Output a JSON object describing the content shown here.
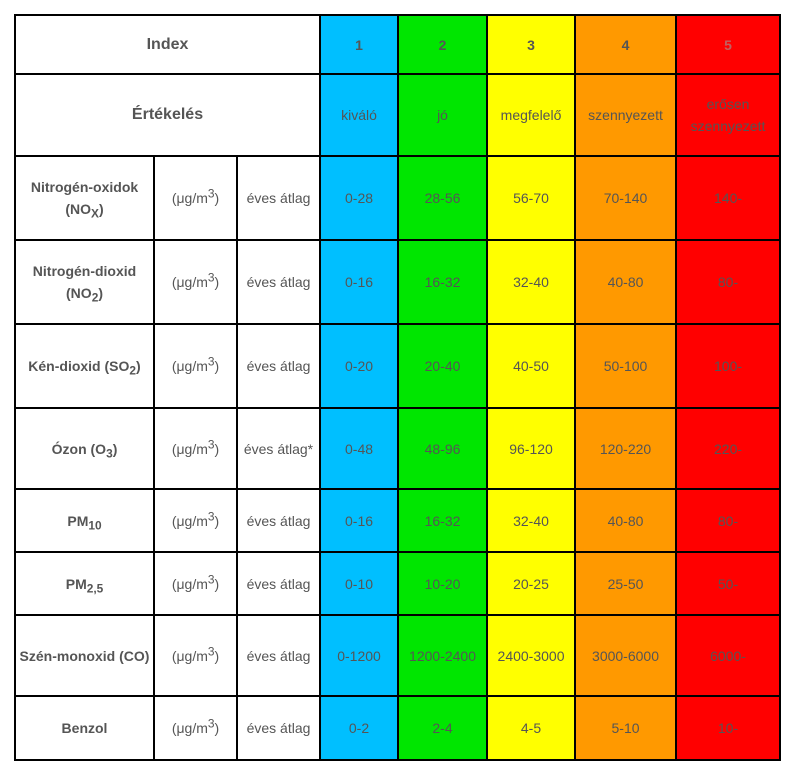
{
  "header": {
    "index_label": "Index",
    "rating_label": "Értékelés",
    "levels": [
      "1",
      "2",
      "3",
      "4",
      "5"
    ],
    "ratings": [
      "kiváló",
      "jó",
      "megfelelő",
      "szennyezett",
      "erősen szennyezett"
    ]
  },
  "unit": {
    "prefix": "(μg/m",
    "exp": "3",
    "suffix": ")"
  },
  "colors": {
    "level1": "#00bfff",
    "level2": "#00e600",
    "level3": "#ffff00",
    "level4": "#ff9900",
    "level5": "#ff0000"
  },
  "rows": [
    {
      "name_main": "Nitrogén-oxidok (NO",
      "name_sub": "X",
      "name_end": ")",
      "period": "éves átlag",
      "values": [
        "0-28",
        "28-56",
        "56-70",
        "70-140",
        "140-"
      ]
    },
    {
      "name_main": "Nitrogén-dioxid (NO",
      "name_sub": "2",
      "name_end": ")",
      "period": "éves átlag",
      "values": [
        "0-16",
        "16-32",
        "32-40",
        "40-80",
        "80-"
      ]
    },
    {
      "name_main": "Kén-dioxid (SO",
      "name_sub": "2",
      "name_end": ")",
      "period": "éves átlag",
      "values": [
        "0-20",
        "20-40",
        "40-50",
        "50-100",
        "100-"
      ]
    },
    {
      "name_main": "Ózon (O",
      "name_sub": "3",
      "name_end": ")",
      "period": "éves átlag*",
      "values": [
        "0-48",
        "48-96",
        "96-120",
        "120-220",
        "220-"
      ]
    },
    {
      "name_main": "PM",
      "name_sub": "10",
      "name_end": "",
      "period": "éves átlag",
      "values": [
        "0-16",
        "16-32",
        "32-40",
        "40-80",
        "80-"
      ]
    },
    {
      "name_main": "PM",
      "name_sub": "2,5",
      "name_end": "",
      "period": "éves átlag",
      "values": [
        "0-10",
        "10-20",
        "20-25",
        "25-50",
        "50-"
      ]
    },
    {
      "name_main": "Szén-monoxid (CO)",
      "name_sub": "",
      "name_end": "",
      "period": "éves átlag",
      "values": [
        "0-1200",
        "1200-2400",
        "2400-3000",
        "3000-6000",
        "6000-"
      ]
    },
    {
      "name_main": "Benzol",
      "name_sub": "",
      "name_end": "",
      "period": "éves átlag",
      "values": [
        "0-2",
        "2-4",
        "4-5",
        "5-10",
        "10-"
      ]
    }
  ]
}
